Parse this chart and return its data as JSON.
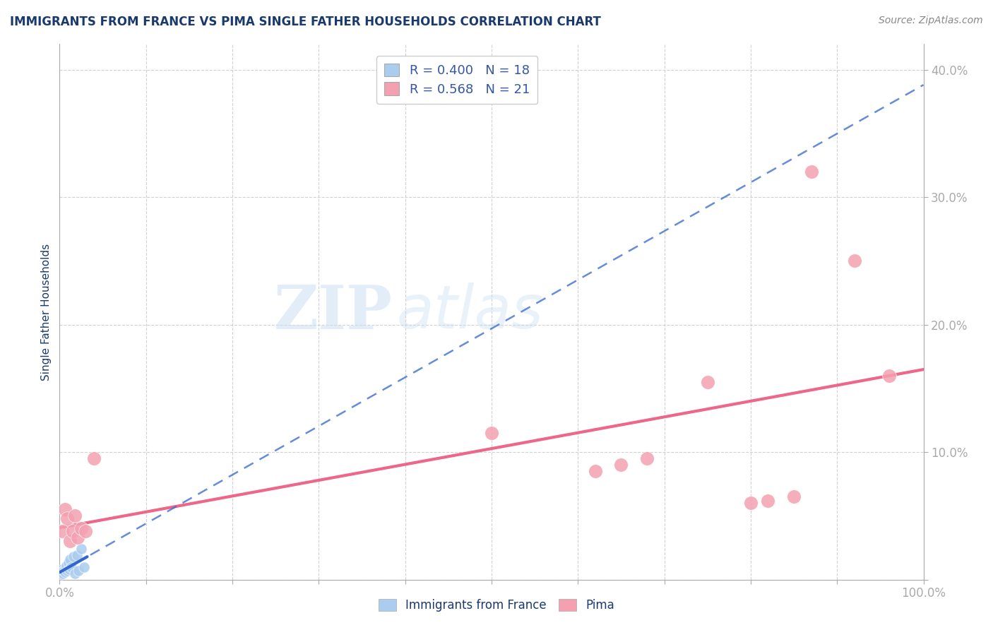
{
  "title": "IMMIGRANTS FROM FRANCE VS PIMA SINGLE FATHER HOUSEHOLDS CORRELATION CHART",
  "source": "Source: ZipAtlas.com",
  "ylabel": "Single Father Households",
  "xlim": [
    0,
    1.0
  ],
  "ylim": [
    0,
    0.42
  ],
  "xticks": [
    0.0,
    0.1,
    0.2,
    0.3,
    0.4,
    0.5,
    0.6,
    0.7,
    0.8,
    0.9,
    1.0
  ],
  "xticklabels": [
    "0.0%",
    "",
    "",
    "",
    "",
    "",
    "",
    "",
    "",
    "",
    "100.0%"
  ],
  "yticks": [
    0.0,
    0.1,
    0.2,
    0.3,
    0.4
  ],
  "yticklabels": [
    "",
    "10.0%",
    "20.0%",
    "30.0%",
    "40.0%"
  ],
  "legend_r_blue": "R = 0.400",
  "legend_n_blue": "N = 18",
  "legend_r_pink": "R = 0.568",
  "legend_n_pink": "N = 21",
  "watermark_zip": "ZIP",
  "watermark_atlas": "atlas",
  "blue_color": "#aaccee",
  "pink_color": "#f4a0b0",
  "blue_line_color": "#3366cc",
  "pink_line_color": "#ee6688",
  "blue_scatter_x": [
    0.002,
    0.003,
    0.004,
    0.005,
    0.006,
    0.007,
    0.008,
    0.009,
    0.01,
    0.011,
    0.012,
    0.014,
    0.016,
    0.018,
    0.02,
    0.022,
    0.025,
    0.028
  ],
  "blue_scatter_y": [
    0.004,
    0.008,
    0.005,
    0.007,
    0.006,
    0.009,
    0.011,
    0.007,
    0.013,
    0.008,
    0.016,
    0.01,
    0.018,
    0.005,
    0.019,
    0.007,
    0.024,
    0.01
  ],
  "pink_scatter_x": [
    0.003,
    0.006,
    0.009,
    0.012,
    0.015,
    0.018,
    0.021,
    0.025,
    0.03,
    0.04,
    0.5,
    0.62,
    0.65,
    0.68,
    0.75,
    0.8,
    0.82,
    0.85,
    0.87,
    0.92,
    0.96
  ],
  "pink_scatter_y": [
    0.038,
    0.055,
    0.048,
    0.03,
    0.038,
    0.05,
    0.033,
    0.04,
    0.038,
    0.095,
    0.115,
    0.085,
    0.09,
    0.095,
    0.155,
    0.06,
    0.062,
    0.065,
    0.32,
    0.25,
    0.16
  ],
  "background_color": "#FFFFFF",
  "grid_color": "#CCCCCC",
  "title_color": "#1a3a6e",
  "axis_label_color": "#1a3a6e",
  "tick_label_color": "#3355aa"
}
